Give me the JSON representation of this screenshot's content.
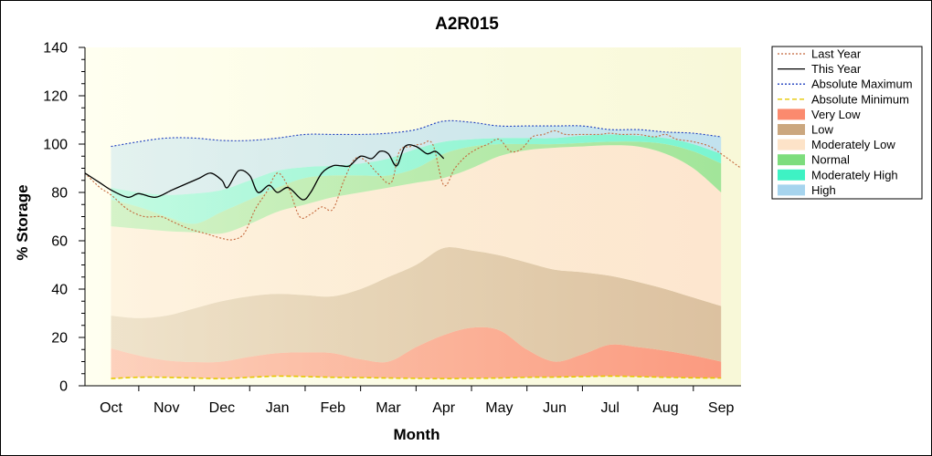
{
  "chart_data": {
    "type": "area",
    "title": "A2R015",
    "xlabel": "Month",
    "ylabel": "% Storage",
    "ylim": [
      0,
      140
    ],
    "yticks": [
      0,
      20,
      40,
      60,
      80,
      100,
      120,
      140
    ],
    "categories": [
      "Oct",
      "Nov",
      "Dec",
      "Jan",
      "Feb",
      "Mar",
      "Apr",
      "May",
      "Jun",
      "Jul",
      "Aug",
      "Sep"
    ],
    "category_positions": [
      1,
      2,
      3,
      4,
      5,
      6,
      7,
      8,
      9,
      10,
      11,
      12
    ],
    "xlim": [
      0.53,
      12.36
    ],
    "band_x": [
      1,
      1.5,
      2,
      2.5,
      3,
      3.5,
      4,
      4.5,
      5,
      5.5,
      6,
      6.5,
      7,
      7.5,
      8,
      8.5,
      9,
      9.5,
      10,
      10.5,
      11,
      11.5,
      12
    ],
    "bands": [
      {
        "name": "Absolute Minimum",
        "values": [
          3,
          3.5,
          3.5,
          3.2,
          3,
          3.5,
          4,
          3.8,
          3.5,
          3.4,
          3.2,
          3.1,
          3,
          3.1,
          3.2,
          3.5,
          3.6,
          3.8,
          4,
          3.8,
          3.5,
          3.3,
          3.2
        ]
      },
      {
        "name": "Very Low",
        "values": [
          15.5,
          12.5,
          10.5,
          9.8,
          10,
          12,
          13.5,
          13.8,
          13.5,
          11,
          10,
          16,
          21,
          24,
          23,
          15,
          10,
          13,
          17,
          16,
          14.5,
          12.5,
          10
        ]
      },
      {
        "name": "Low",
        "values": [
          29,
          28,
          29,
          32,
          35,
          37,
          38,
          37.5,
          37,
          40,
          45,
          50,
          57,
          56,
          54,
          51,
          48,
          47,
          45.5,
          43,
          40,
          36.5,
          33
        ]
      },
      {
        "name": "Moderately Low",
        "values": [
          66,
          65,
          64,
          63.5,
          63,
          67,
          72,
          75,
          78,
          80,
          82,
          84,
          86,
          90,
          95,
          97.5,
          98.5,
          99,
          99.5,
          99,
          96,
          90,
          80
        ]
      },
      {
        "name": "Normal",
        "values": [
          77,
          74,
          70,
          67,
          72,
          77,
          82,
          86,
          87,
          87,
          87,
          90,
          96,
          99,
          100,
          100,
          100,
          100.5,
          101,
          101,
          100,
          97,
          92
        ]
      },
      {
        "name": "Moderately High",
        "values": [
          82,
          80,
          79,
          79.5,
          81,
          85,
          89,
          90.5,
          91,
          92,
          94,
          98,
          101,
          102,
          102.5,
          102.5,
          102.5,
          103.5,
          104,
          103.5,
          102.5,
          100,
          96
        ]
      },
      {
        "name": "High",
        "values": [
          99,
          101,
          102.5,
          102.5,
          101.5,
          101.5,
          102.5,
          104,
          104,
          104,
          104.5,
          106,
          109.5,
          109,
          107.5,
          107.5,
          107.5,
          107.5,
          106,
          106,
          105,
          104.5,
          103
        ]
      }
    ],
    "series": [
      {
        "name": "Last Year",
        "style": "dotted",
        "color": "#c4683c",
        "x": [
          0.53,
          0.8,
          1,
          1.3,
          1.6,
          1.9,
          2.1,
          2.4,
          2.7,
          3,
          3.2,
          3.4,
          3.6,
          3.8,
          4,
          4.2,
          4.4,
          4.6,
          4.8,
          5,
          5.2,
          5.4,
          5.6,
          5.8,
          6.05,
          6.2,
          6.4,
          6.6,
          6.8,
          7,
          7.2,
          7.4,
          7.6,
          7.8,
          8,
          8.2,
          8.4,
          8.6,
          8.8,
          9,
          9.2,
          9.5,
          9.8,
          10,
          10.2,
          10.5,
          10.8,
          11,
          11.2,
          11.5,
          11.8,
          12,
          12.36
        ],
        "y": [
          88,
          82,
          79,
          73,
          70,
          70,
          68,
          65,
          63,
          61,
          60.5,
          63,
          73,
          80,
          88,
          82,
          70,
          71,
          74,
          73,
          85,
          94,
          93,
          88,
          84,
          97,
          99,
          100,
          100,
          83,
          90,
          95,
          98,
          100,
          102,
          97,
          98,
          103,
          104,
          105.5,
          104,
          104,
          104,
          104.5,
          104,
          104,
          103,
          104,
          102,
          101,
          99,
          96,
          90
        ]
      },
      {
        "name": "This Year",
        "style": "solid",
        "color": "#000000",
        "x": [
          0.53,
          0.8,
          1,
          1.3,
          1.5,
          1.8,
          2.1,
          2.4,
          2.6,
          2.8,
          3,
          3.1,
          3.3,
          3.5,
          3.65,
          3.85,
          4,
          4.2,
          4.45,
          4.6,
          4.8,
          5,
          5.15,
          5.3,
          5.5,
          5.7,
          5.85,
          6,
          6.15,
          6.3,
          6.5,
          6.7,
          6.85,
          7
        ],
        "y": [
          88,
          84,
          81,
          78,
          79.5,
          78,
          81,
          84,
          86,
          88,
          85,
          82,
          89,
          87,
          80,
          83,
          80,
          82,
          77,
          80,
          88,
          91,
          91,
          91,
          95,
          94,
          97,
          96,
          91,
          99,
          99,
          96,
          97,
          94
        ]
      },
      {
        "name": "Absolute Maximum",
        "style": "dotted",
        "color": "#1f3fbf",
        "x": [
          1,
          1.5,
          2,
          2.5,
          3,
          3.5,
          4,
          4.5,
          5,
          5.5,
          6,
          6.5,
          7,
          7.5,
          8,
          8.5,
          9,
          9.5,
          10,
          10.5,
          11,
          11.5,
          12
        ],
        "y": [
          99,
          101,
          102.5,
          102.5,
          101.5,
          101.5,
          102.5,
          104,
          104,
          104,
          104.5,
          106,
          109.5,
          109,
          107.5,
          107.5,
          107.5,
          107.5,
          106,
          106,
          105,
          104.5,
          103
        ]
      },
      {
        "name": "Absolute Minimum",
        "style": "dashed",
        "color": "#e6c800",
        "x": [
          1,
          1.5,
          2,
          2.5,
          3,
          3.5,
          4,
          4.5,
          5,
          5.5,
          6,
          6.5,
          7,
          7.5,
          8,
          8.5,
          9,
          9.5,
          10,
          10.5,
          11,
          11.5,
          12
        ],
        "y": [
          3,
          3.5,
          3.5,
          3.2,
          3,
          3.5,
          4,
          3.8,
          3.5,
          3.4,
          3.2,
          3.1,
          3,
          3.1,
          3.2,
          3.5,
          3.6,
          3.8,
          4,
          3.8,
          3.5,
          3.3,
          3.2
        ]
      }
    ],
    "legend": {
      "placement": "right",
      "entries": [
        {
          "label": "Last Year",
          "kind": "line",
          "style": "dotted",
          "color": "#c4683c"
        },
        {
          "label": "This Year",
          "kind": "line",
          "style": "solid",
          "color": "#000000"
        },
        {
          "label": "Absolute Maximum",
          "kind": "line",
          "style": "dotted",
          "color": "#1f3fbf"
        },
        {
          "label": "Absolute Minimum",
          "kind": "line",
          "style": "dashed",
          "color": "#e6c800"
        },
        {
          "label": "Very Low",
          "kind": "swatch",
          "color": "#fb8a6e"
        },
        {
          "label": "Low",
          "kind": "swatch",
          "color": "#cba77f"
        },
        {
          "label": "Moderately Low",
          "kind": "swatch",
          "color": "#fde3c8"
        },
        {
          "label": "Normal",
          "kind": "swatch",
          "color": "#7ddd7d"
        },
        {
          "label": "Moderately High",
          "kind": "swatch",
          "color": "#3ef2c4"
        },
        {
          "label": "High",
          "kind": "swatch",
          "color": "#a6d4ee"
        }
      ]
    },
    "colors": {
      "plot_background": "#fdfde6",
      "band_fills": {
        "Very Low": "#fb9a80",
        "Low": "#dcc1a0",
        "Moderately Low": "#fde6cf",
        "Normal": "#a2e59a",
        "Moderately High": "#7af5d2",
        "High": "#c2e2ef"
      }
    }
  }
}
